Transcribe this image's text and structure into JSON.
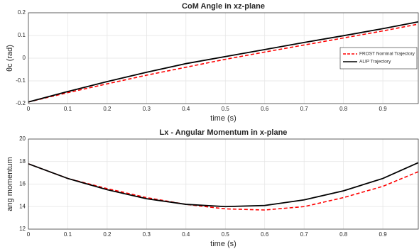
{
  "chart_data": [
    {
      "type": "line",
      "title": "CoM Angle in xz-plane",
      "xlabel": "time (s)",
      "ylabel": "θc (rad)",
      "x": [
        0,
        0.1,
        0.2,
        0.3,
        0.4,
        0.5,
        0.6,
        0.7,
        0.8,
        0.9,
        0.99
      ],
      "series": [
        {
          "name": "FROST Nominal Trajectory",
          "color": "#ff0000",
          "linestyle": "--",
          "values": [
            -0.193,
            -0.152,
            -0.113,
            -0.075,
            -0.04,
            -0.005,
            0.027,
            0.058,
            0.089,
            0.12,
            0.15
          ]
        },
        {
          "name": "ALIP Trajectory",
          "color": "#000000",
          "linestyle": "-",
          "values": [
            -0.193,
            -0.147,
            -0.103,
            -0.062,
            -0.024,
            0.007,
            0.038,
            0.069,
            0.099,
            0.13,
            0.16
          ]
        }
      ],
      "xlim": [
        0,
        0.99
      ],
      "xticks": [
        0,
        0.1,
        0.2,
        0.3,
        0.4,
        0.5,
        0.6,
        0.7,
        0.8,
        0.9
      ],
      "ylim": [
        -0.2,
        0.2
      ],
      "yticks": [
        -0.2,
        -0.1,
        0,
        0.1,
        0.2
      ],
      "grid": true,
      "legend": "east"
    },
    {
      "type": "line",
      "title": "Lx - Angular Momentum in x-plane",
      "xlabel": "time (s)",
      "ylabel": "ang momentum",
      "x": [
        0,
        0.1,
        0.2,
        0.3,
        0.4,
        0.5,
        0.6,
        0.7,
        0.8,
        0.9,
        0.99
      ],
      "series": [
        {
          "color": "#ff0000",
          "linestyle": "--",
          "values": [
            17.8,
            16.5,
            15.6,
            14.8,
            14.2,
            13.8,
            13.7,
            14.0,
            14.8,
            15.8,
            17.1
          ]
        },
        {
          "color": "#000000",
          "linestyle": "-",
          "values": [
            17.8,
            16.5,
            15.5,
            14.7,
            14.2,
            14.0,
            14.1,
            14.6,
            15.4,
            16.5,
            17.9
          ]
        }
      ],
      "xlim": [
        0,
        0.99
      ],
      "xticks": [
        0,
        0.1,
        0.2,
        0.3,
        0.4,
        0.5,
        0.6,
        0.7,
        0.8,
        0.9
      ],
      "ylim": [
        12,
        20
      ],
      "yticks": [
        12,
        14,
        16,
        18,
        20
      ],
      "grid": true
    }
  ]
}
